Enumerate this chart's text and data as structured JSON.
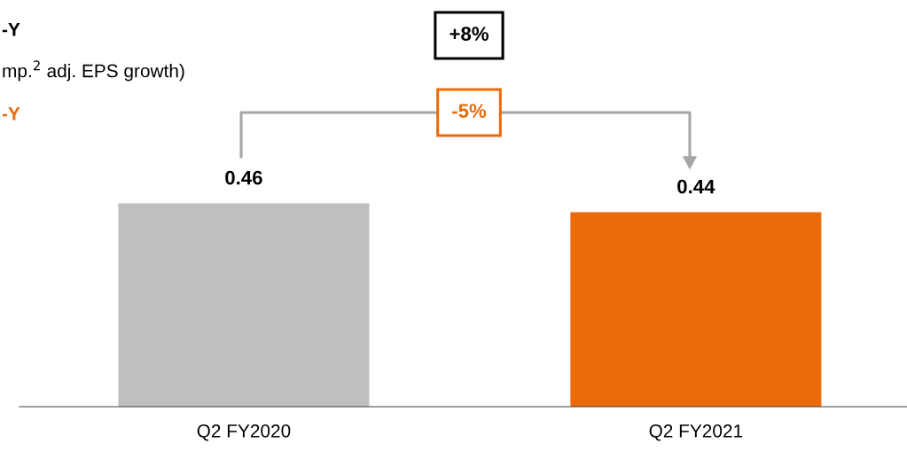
{
  "chart_data": {
    "type": "bar",
    "categories": [
      "Q2 FY2020",
      "Q2 FY2021"
    ],
    "values": [
      0.46,
      0.44
    ],
    "colors": [
      "#bfbfbf",
      "#eb6a0a"
    ],
    "data_labels": true,
    "grid": false,
    "legend": false,
    "annotations": [
      "-Y",
      "mp.$^{2}$ adj. EPS growth)",
      "-Y",
      "+8%",
      "-5%"
    ]
  }
}
